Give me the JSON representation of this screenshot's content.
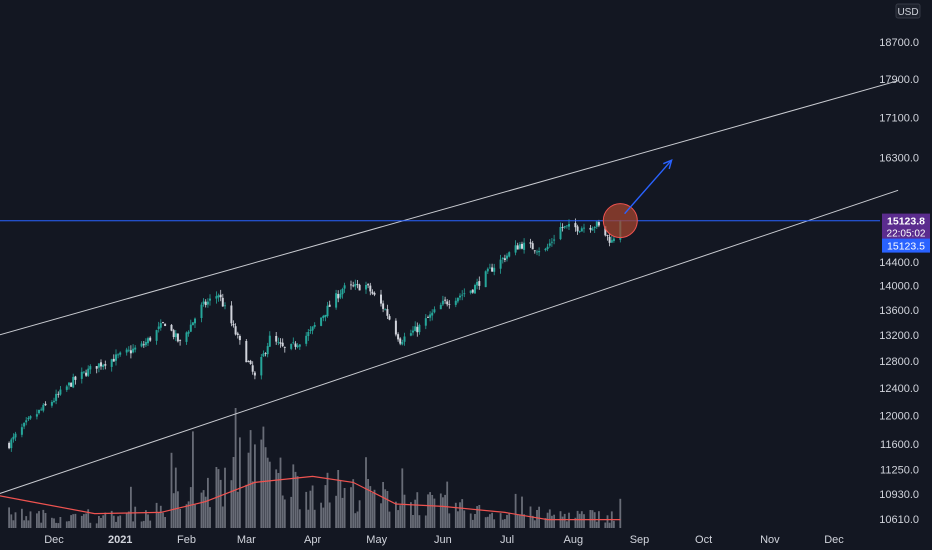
{
  "colors": {
    "background": "#131722",
    "candle_up": "#26a69a",
    "candle_down": "#d1d4dc",
    "volume": "#787b86",
    "volume_ma": "#ef5350",
    "channel_line": "#c9cbd1",
    "price_line": "#2962ff",
    "arrow": "#2962ff",
    "marker_fill": "#a1442f",
    "marker_stroke": "#ef5350",
    "axis_text": "#d1d4dc",
    "price_label_purple": "#5b2c8e",
    "price_label_blue": "#2962ff"
  },
  "chart_data": {
    "type": "candlestick",
    "y_scale": "log",
    "currency": "USD",
    "y_ticks": [
      10610.0,
      10930.0,
      11250.0,
      11600.0,
      12000.0,
      12400.0,
      12800.0,
      13200.0,
      13600.0,
      14000.0,
      14400.0,
      16300.0,
      17100.0,
      17900.0,
      18700.0
    ],
    "x_ticks": [
      "Dec",
      "2021",
      "Feb",
      "Mar",
      "Apr",
      "May",
      "Jun",
      "Jul",
      "Aug",
      "Sep",
      "Oct",
      "Nov",
      "Dec"
    ],
    "x_tick_dates": [
      "2020-12-01",
      "2021-01-01",
      "2021-02-01",
      "2021-03-01",
      "2021-04-01",
      "2021-05-01",
      "2021-06-01",
      "2021-07-01",
      "2021-08-01",
      "2021-09-01",
      "2021-10-01",
      "2021-11-01",
      "2021-12-01"
    ],
    "last_price": {
      "value": "15123.8",
      "countdown": "22:05:02"
    },
    "horizontal_level": {
      "value": "15123.5"
    },
    "close_path": [
      {
        "date": "2020-11-10",
        "close": 11600
      },
      {
        "date": "2020-11-20",
        "close": 11950
      },
      {
        "date": "2020-12-01",
        "close": 12230
      },
      {
        "date": "2020-12-10",
        "close": 12500
      },
      {
        "date": "2020-12-20",
        "close": 12720
      },
      {
        "date": "2021-01-01",
        "close": 12880
      },
      {
        "date": "2021-01-12",
        "close": 13050
      },
      {
        "date": "2021-01-22",
        "close": 13400
      },
      {
        "date": "2021-01-29",
        "close": 13070
      },
      {
        "date": "2021-02-08",
        "close": 13650
      },
      {
        "date": "2021-02-16",
        "close": 13860
      },
      {
        "date": "2021-02-25",
        "close": 13150
      },
      {
        "date": "2021-03-05",
        "close": 12550
      },
      {
        "date": "2021-03-12",
        "close": 13150
      },
      {
        "date": "2021-03-20",
        "close": 12950
      },
      {
        "date": "2021-03-31",
        "close": 13250
      },
      {
        "date": "2021-04-15",
        "close": 13950
      },
      {
        "date": "2021-04-26",
        "close": 14000
      },
      {
        "date": "2021-05-05",
        "close": 13600
      },
      {
        "date": "2021-05-12",
        "close": 13120
      },
      {
        "date": "2021-05-20",
        "close": 13300
      },
      {
        "date": "2021-06-01",
        "close": 13700
      },
      {
        "date": "2021-06-15",
        "close": 13950
      },
      {
        "date": "2021-06-25",
        "close": 14330
      },
      {
        "date": "2021-07-07",
        "close": 14700
      },
      {
        "date": "2021-07-19",
        "close": 14600
      },
      {
        "date": "2021-07-26",
        "close": 15000
      },
      {
        "date": "2021-08-04",
        "close": 15000
      },
      {
        "date": "2021-08-12",
        "close": 15050
      },
      {
        "date": "2021-08-19",
        "close": 14750
      },
      {
        "date": "2021-08-23",
        "close": 15123.8
      }
    ],
    "volume_profile": [
      {
        "date": "2020-11-10",
        "v": 0.14
      },
      {
        "date": "2020-12-20",
        "v": 0.1
      },
      {
        "date": "2021-01-15",
        "v": 0.16
      },
      {
        "date": "2021-02-20",
        "v": 0.45
      },
      {
        "date": "2021-03-05",
        "v": 0.95
      },
      {
        "date": "2021-03-12",
        "v": 0.55
      },
      {
        "date": "2021-04-01",
        "v": 0.4
      },
      {
        "date": "2021-05-12",
        "v": 0.3
      },
      {
        "date": "2021-06-20",
        "v": 0.16
      },
      {
        "date": "2021-08-23",
        "v": 0.12
      }
    ],
    "volume_ma": [
      {
        "date": "2020-11-05",
        "v": 0.27
      },
      {
        "date": "2020-11-20",
        "v": 0.22
      },
      {
        "date": "2020-12-20",
        "v": 0.12
      },
      {
        "date": "2021-01-20",
        "v": 0.13
      },
      {
        "date": "2021-02-10",
        "v": 0.22
      },
      {
        "date": "2021-03-05",
        "v": 0.38
      },
      {
        "date": "2021-04-01",
        "v": 0.43
      },
      {
        "date": "2021-04-20",
        "v": 0.38
      },
      {
        "date": "2021-05-10",
        "v": 0.2
      },
      {
        "date": "2021-06-01",
        "v": 0.18
      },
      {
        "date": "2021-06-30",
        "v": 0.13
      },
      {
        "date": "2021-07-20",
        "v": 0.07
      },
      {
        "date": "2021-08-23",
        "v": 0.07
      }
    ],
    "drawings": {
      "upper_channel": [
        {
          "date": "2020-11-05",
          "price": 13200
        },
        {
          "date": "2021-12-31",
          "price": 17860
        }
      ],
      "lower_channel": [
        {
          "date": "2020-11-05",
          "price": 10930
        },
        {
          "date": "2021-12-31",
          "price": 15680
        }
      ],
      "marker": {
        "date": "2021-08-23",
        "price": 15123.8
      },
      "arrow": [
        {
          "date": "2021-08-25",
          "price": 15250
        },
        {
          "date": "2021-09-16",
          "price": 16250
        }
      ]
    }
  }
}
